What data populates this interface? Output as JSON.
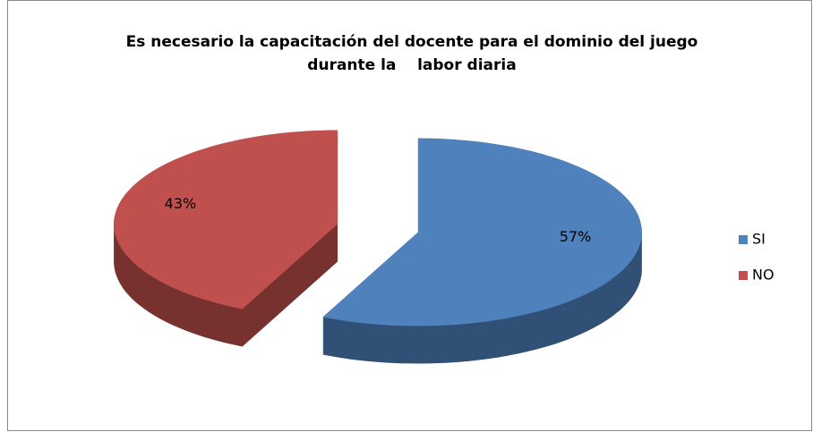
{
  "chart_data": {
    "type": "pie",
    "title": [
      "Es necesario la capacitación del docente para el dominio del juego",
      "durante la    labor diaria"
    ],
    "categories": [
      "SI",
      "NO"
    ],
    "values": [
      57,
      43
    ],
    "value_labels": [
      "57%",
      "43%"
    ],
    "colors": [
      "#4f81bd",
      "#c0504d"
    ],
    "legend": "right"
  }
}
